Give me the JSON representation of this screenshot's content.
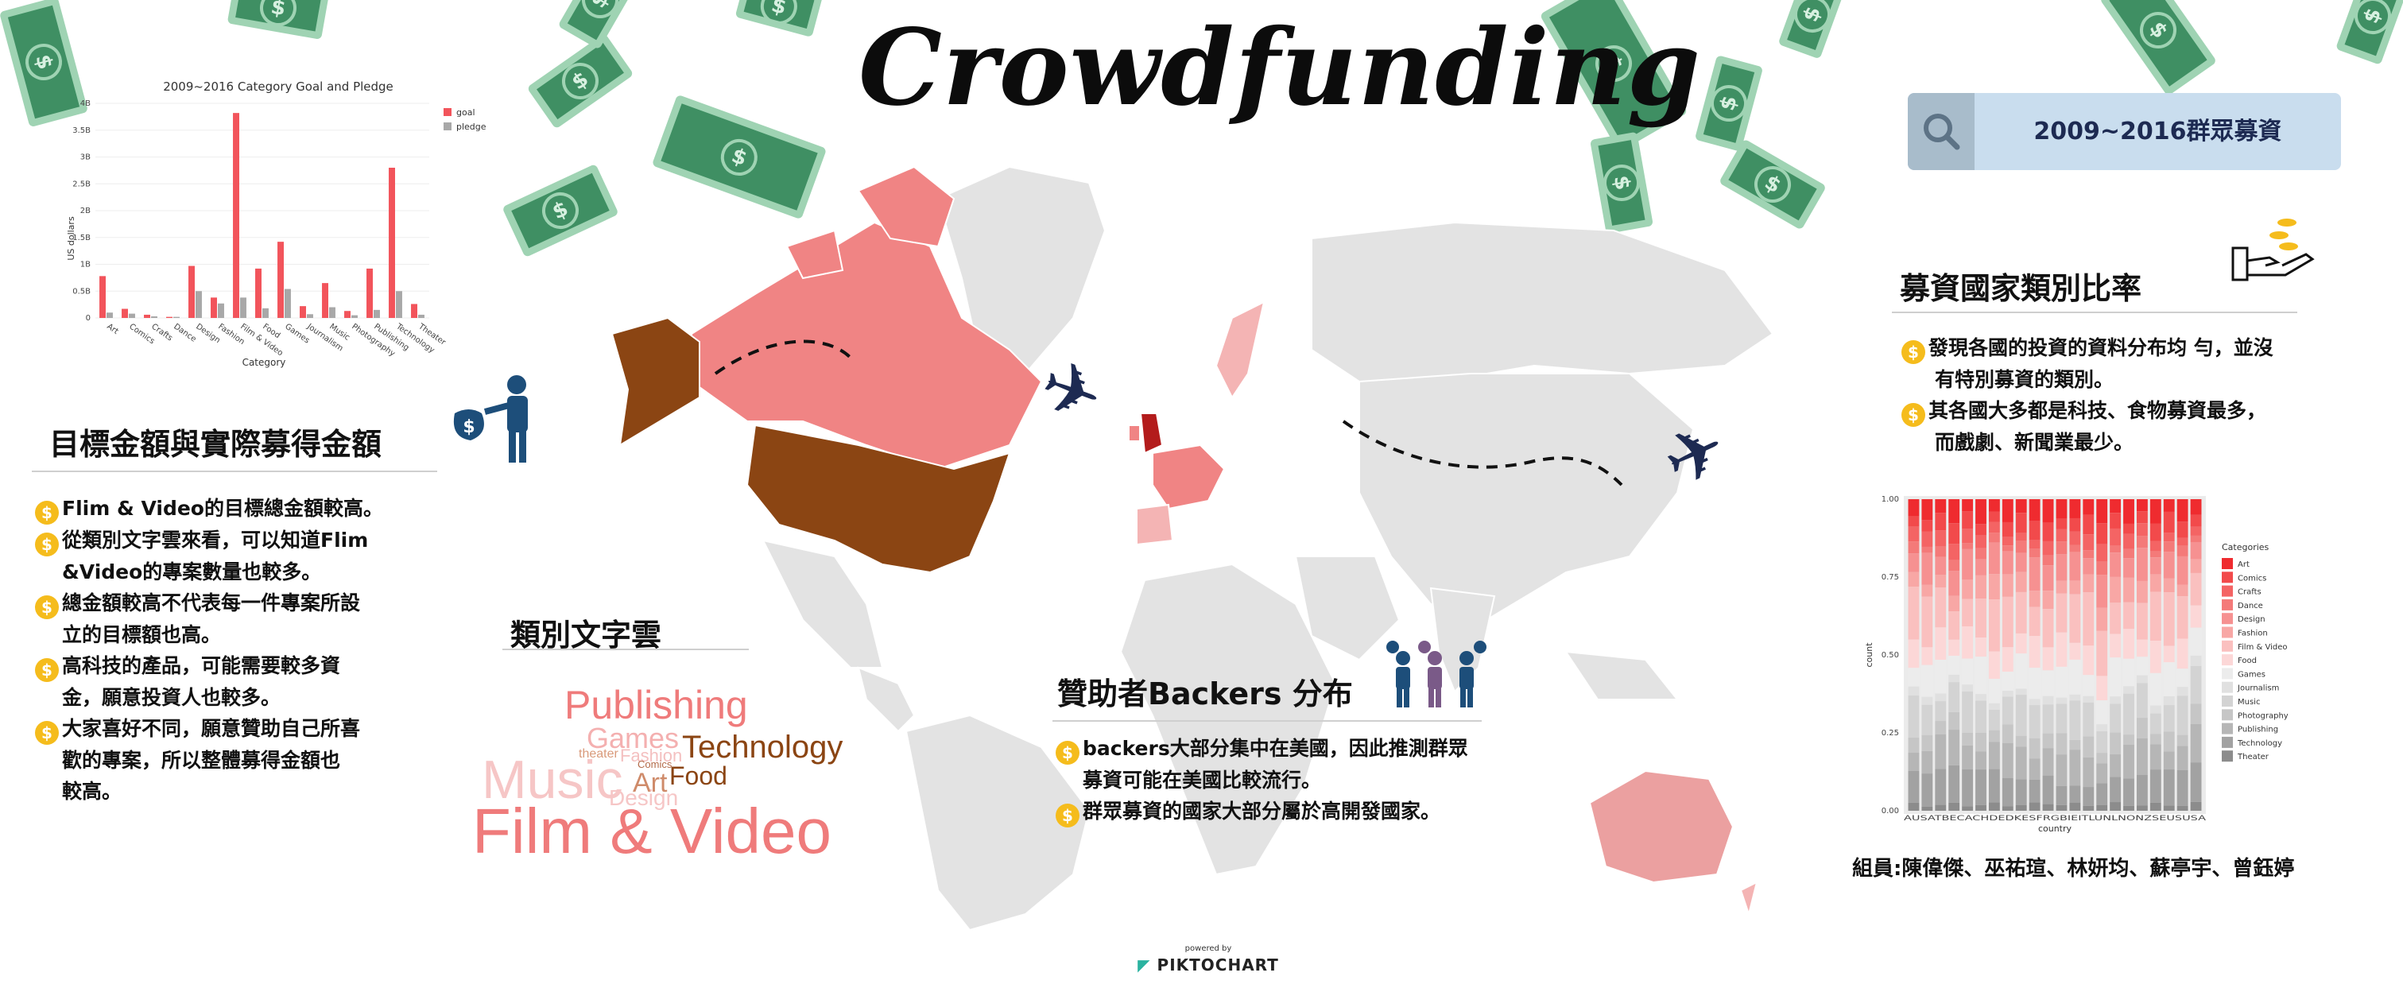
{
  "title": "Crowdfunding",
  "search": {
    "label": "2009~2016群眾募資"
  },
  "left_chart": {
    "chart_data": {
      "type": "bar",
      "title": "2009~2016 Category Goal and Pledge",
      "ylabel": "US dollars",
      "xlabel": "Category",
      "ylim": [
        0,
        4
      ],
      "ytick_labels": [
        "0",
        "0.5B",
        "1B",
        "1.5B",
        "2B",
        "2.5B",
        "3B",
        "3.5B",
        "4B"
      ],
      "categories": [
        "Art",
        "Comics",
        "Crafts",
        "Dance",
        "Design",
        "Fashion",
        "Film & Video",
        "Food",
        "Games",
        "Journalism",
        "Music",
        "Photography",
        "Publishing",
        "Technology",
        "Theater"
      ],
      "series": [
        {
          "name": "goal",
          "color": "#f2545b",
          "values": [
            0.78,
            0.17,
            0.06,
            0.02,
            0.97,
            0.38,
            3.82,
            0.92,
            1.42,
            0.22,
            0.65,
            0.13,
            0.92,
            2.8,
            0.26
          ]
        },
        {
          "name": "pledge",
          "color": "#a8a8a8",
          "values": [
            0.1,
            0.08,
            0.03,
            0.02,
            0.5,
            0.27,
            0.38,
            0.18,
            0.54,
            0.07,
            0.2,
            0.05,
            0.15,
            0.5,
            0.06
          ]
        }
      ],
      "legend": "top-right"
    }
  },
  "sec_goal": {
    "heading": "目標金額與實際募得金額",
    "bullets": [
      [
        "Flim & Video的目標總金額較高。"
      ],
      [
        "從類別文字雲來看，可以知道Flim",
        "&Video的專案數量也較多。"
      ],
      [
        "總金額較高不代表每一件專案所設",
        "立的目標額也高。"
      ],
      [
        "高科技的產品，可能需要較多資",
        "金，願意投資人也較多。"
      ],
      [
        "大家喜好不同，願意贊助自己所喜",
        "歡的專案，所以整體募得金額也",
        "較高。"
      ]
    ]
  },
  "sec_cloud": {
    "heading": "類別文字雲",
    "words": [
      "Publishing",
      "Games",
      "Technology",
      "Music",
      "Food",
      "Art",
      "Fashion",
      "theater",
      "Comics",
      "Design",
      "Film & Video"
    ]
  },
  "sec_backers": {
    "heading": "贊助者Backers 分布",
    "bullets": [
      [
        "backers大部分集中在美國，因此推測群眾",
        "募資可能在美國比較流行。"
      ],
      [
        "群眾募資的國家大部分屬於高開發國家。"
      ]
    ]
  },
  "sec_ratio": {
    "heading": "募資國家類別比率",
    "bullets": [
      [
        "發現各國的投資的資料分布均 勻，並沒",
        "有特別募資的類別。"
      ],
      [
        "其各國大多都是科技、食物募資最多，",
        "而戲劇、新聞業最少。"
      ]
    ]
  },
  "right_chart": {
    "chart_data": {
      "type": "bar",
      "stacked": true,
      "ylabel": "count",
      "xlabel": "country",
      "ylim": [
        0,
        1
      ],
      "ytick_labels": [
        "0.00",
        "0.25",
        "0.50",
        "0.75",
        "1.00"
      ],
      "x_labels": "AUSATBECACHDEDKESFRGBIEITLUNLNONZSEUSUSA",
      "legend_title": "Categories",
      "legend_position": "right",
      "categories": [
        "Art",
        "Comics",
        "Crafts",
        "Dance",
        "Design",
        "Fashion",
        "Film & Video",
        "Food",
        "Games",
        "Journalism",
        "Music",
        "Photography",
        "Publishing",
        "Technology",
        "Theater"
      ],
      "colors": [
        "#ef2b2f",
        "#f24a4b",
        "#f46464",
        "#f47a79",
        "#f69191",
        "#f8a7a5",
        "#fac0bf",
        "#fcd7d7",
        "#ececec",
        "#e0e0e0",
        "#d3d3d3",
        "#c6c6c6",
        "#b6b6b6",
        "#a2a2a2",
        "#8c8c8c"
      ],
      "shares": [
        0.06,
        0.05,
        0.04,
        0.03,
        0.08,
        0.06,
        0.13,
        0.08,
        0.09,
        0.03,
        0.1,
        0.05,
        0.09,
        0.09,
        0.02
      ],
      "num_countries": 22
    }
  },
  "members": "組員:陳偉傑、巫祐瑄、林妍均、蘇亭宇、曾鈺婷",
  "footer": {
    "powered": "powered by",
    "brand": "PIKTOCHART"
  },
  "icons": [
    "money-bag-icon",
    "backers-icon",
    "search-icon",
    "coins-hand-icon",
    "airplane-icon",
    "coin-icon",
    "dollar-bill-icon"
  ]
}
